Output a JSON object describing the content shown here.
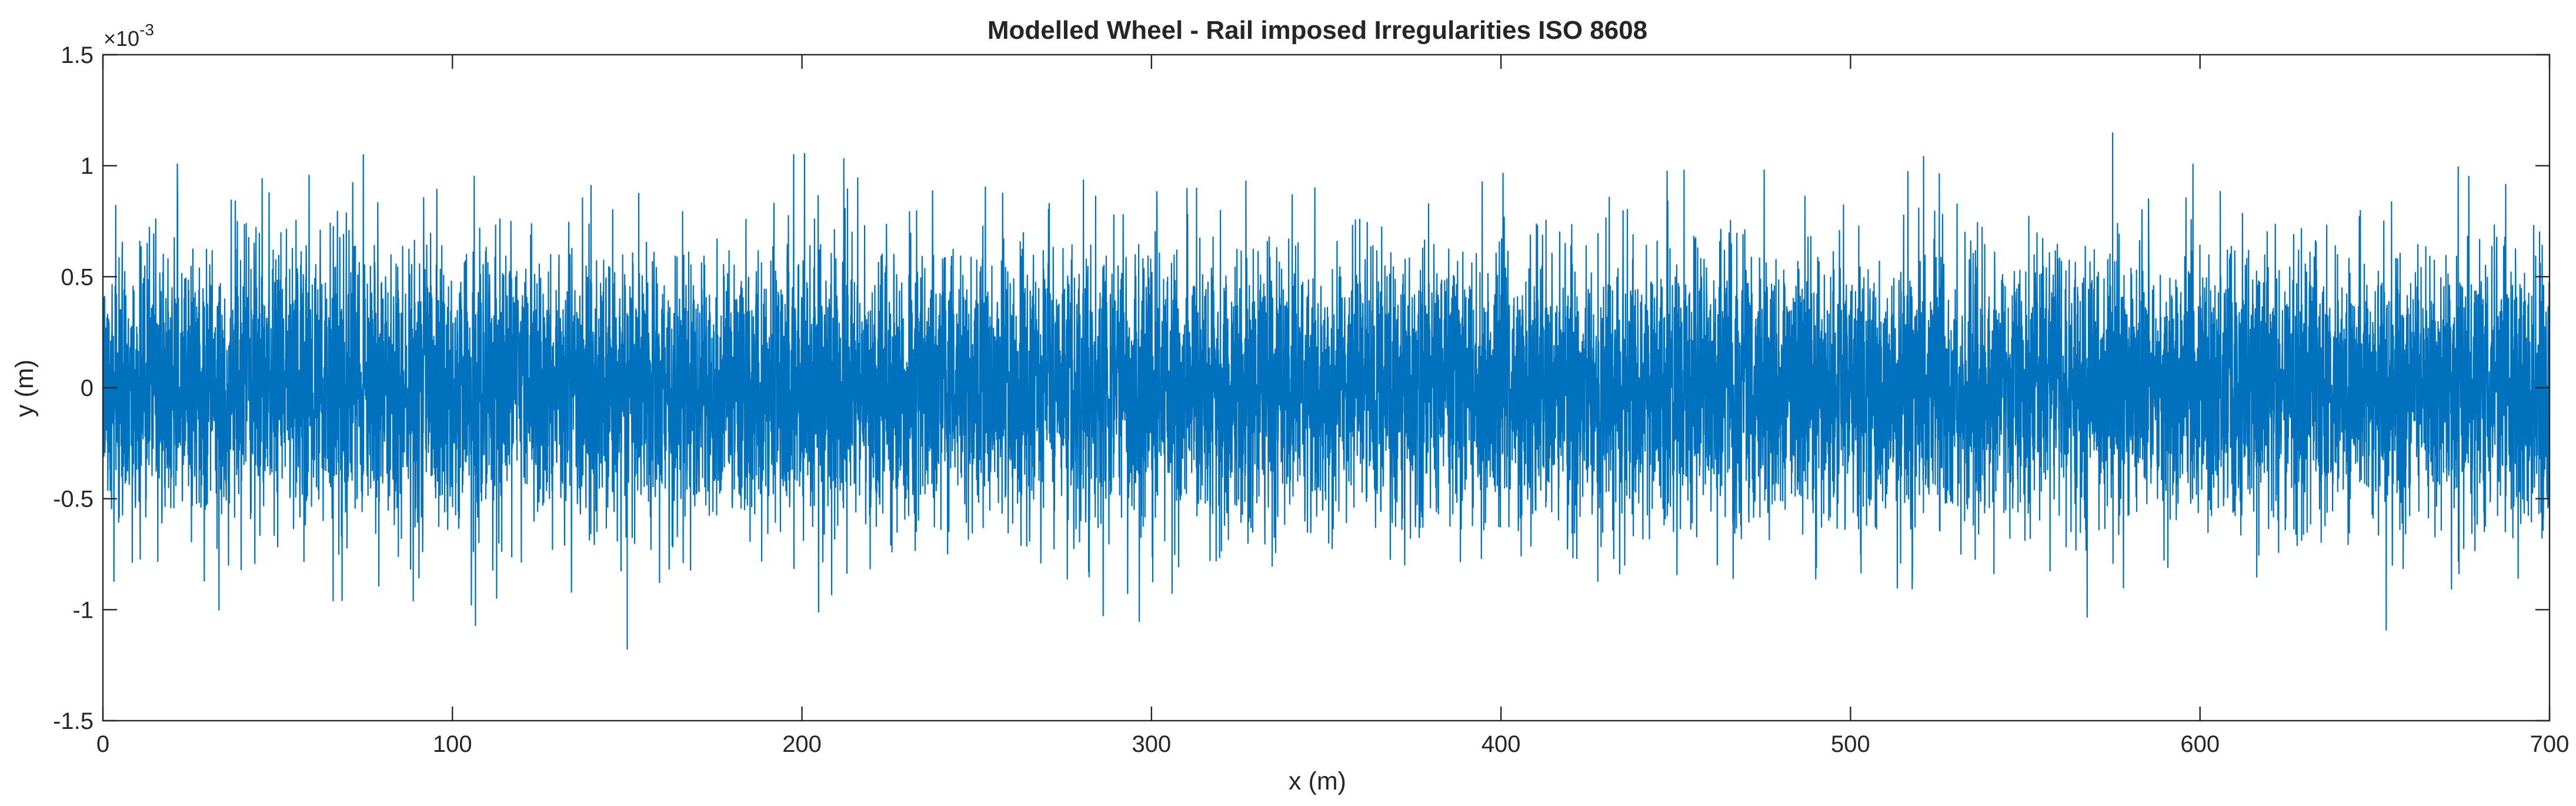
{
  "chart_data": {
    "type": "line",
    "title": "Modelled Wheel - Rail imposed Irregularities ISO 8608",
    "xlabel": "x (m)",
    "ylabel": "y (m)",
    "xlim": [
      0,
      700
    ],
    "ylim": [
      -1.5,
      1.5
    ],
    "y_exponent_label": "×10",
    "y_exponent_power": "-3",
    "y_scale_factor": 0.001,
    "xticks": [
      0,
      100,
      200,
      300,
      400,
      500,
      600,
      700
    ],
    "xtick_labels": [
      "0",
      "100",
      "200",
      "300",
      "400",
      "500",
      "600",
      "700"
    ],
    "yticks": [
      -1.5,
      -1,
      -0.5,
      0,
      0.5,
      1,
      1.5
    ],
    "ytick_labels": [
      "-1.5",
      "-1",
      "-0.5",
      "0",
      "0.5",
      "1",
      "1.5"
    ],
    "grid": false,
    "series": [
      {
        "color": "#0072BD",
        "description_of_signal": "dense random irregularity profile",
        "typical_envelope": [
          -0.9,
          0.9
        ],
        "peak_max": 1.15,
        "peak_min": -1.18,
        "x": [
          0,
          25,
          50,
          75,
          100,
          125,
          150,
          175,
          200,
          225,
          250,
          275,
          300,
          325,
          350,
          375,
          400,
          425,
          450,
          475,
          500,
          525,
          550,
          575,
          600,
          625,
          650,
          675,
          700
        ],
        "upper_envelope": [
          1.08,
          1.02,
          1.1,
          1.05,
          0.99,
          1.02,
          0.98,
          1.03,
          1.1,
          1.02,
          1.05,
          1.07,
          1.02,
          1.08,
          1.05,
          1.03,
          1.15,
          1.04,
          1.0,
          1.02,
          1.08,
          1.06,
          1.03,
          1.15,
          1.04,
          1.05,
          1.1,
          1.07,
          1.0
        ],
        "lower_envelope": [
          -1.02,
          -1.05,
          -1.08,
          -1.05,
          -1.1,
          -1.07,
          -1.18,
          -1.12,
          -1.1,
          -1.05,
          -1.08,
          -1.05,
          -1.06,
          -1.04,
          -1.05,
          -1.09,
          -1.05,
          -1.08,
          -1.06,
          -1.1,
          -1.13,
          -1.06,
          -1.08,
          -1.05,
          -1.07,
          -1.12,
          -1.1,
          -1.08,
          -1.05
        ]
      }
    ]
  }
}
